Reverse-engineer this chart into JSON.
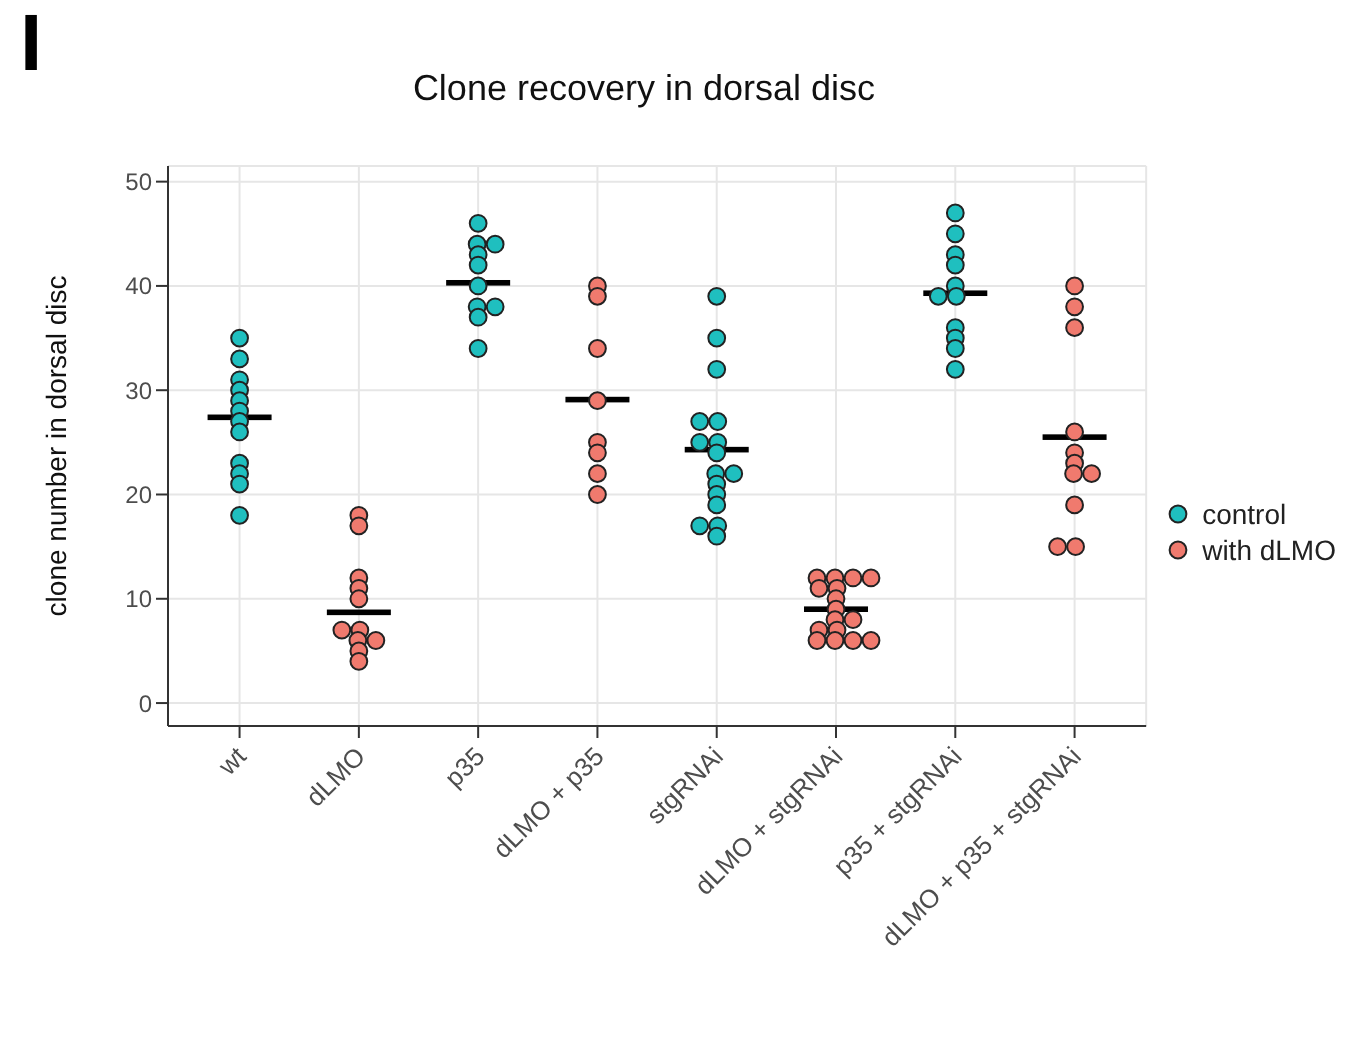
{
  "chart_data": {
    "type": "scatter",
    "title": "Clone recovery in dorsal disc",
    "ylabel": "clone number in dorsal disc",
    "annotations": [
      "I"
    ],
    "categories": [
      "wt",
      "dLMO",
      "p35",
      "dLMO + p35",
      "stgRNAi",
      "dLMO + stgRNAi",
      "p35 + stgRNAi",
      "dLMO + p35 + stgRNAi"
    ],
    "ylim": [
      -2.2,
      51.5
    ],
    "yticks": [
      0,
      10,
      20,
      30,
      40,
      50
    ],
    "grid": true,
    "legend": "right",
    "marker": "circle",
    "series": [
      {
        "name": "control",
        "color": "#1fbfbf",
        "x": [
          "wt",
          "wt",
          "wt",
          "wt",
          "wt",
          "wt",
          "wt",
          "wt",
          "wt",
          "wt",
          "wt",
          "wt",
          "p35",
          "p35",
          "p35",
          "p35",
          "p35",
          "p35",
          "p35",
          "p35",
          "p35",
          "p35",
          "stgRNAi",
          "stgRNAi",
          "stgRNAi",
          "stgRNAi",
          "stgRNAi",
          "stgRNAi",
          "stgRNAi",
          "stgRNAi",
          "stgRNAi",
          "stgRNAi",
          "stgRNAi",
          "stgRNAi",
          "stgRNAi",
          "stgRNAi",
          "stgRNAi",
          "stgRNAi",
          "p35 + stgRNAi",
          "p35 + stgRNAi",
          "p35 + stgRNAi",
          "p35 + stgRNAi",
          "p35 + stgRNAi",
          "p35 + stgRNAi",
          "p35 + stgRNAi",
          "p35 + stgRNAi",
          "p35 + stgRNAi",
          "p35 + stgRNAi",
          "p35 + stgRNAi"
        ],
        "values": [
          35,
          33,
          31,
          30,
          29,
          28,
          27,
          26,
          23,
          22,
          21,
          18,
          46,
          44,
          44,
          43,
          42,
          40,
          38,
          38,
          37,
          34,
          39,
          35,
          32,
          27,
          27,
          25,
          25,
          24,
          22,
          22,
          21,
          20,
          19,
          17,
          17,
          16,
          47,
          45,
          43,
          42,
          40,
          39,
          39,
          36,
          35,
          34,
          32
        ]
      },
      {
        "name": "with dLMO",
        "color": "#f07a6e",
        "x": [
          "dLMO",
          "dLMO",
          "dLMO",
          "dLMO",
          "dLMO",
          "dLMO",
          "dLMO",
          "dLMO",
          "dLMO",
          "dLMO",
          "dLMO",
          "dLMO + p35",
          "dLMO + p35",
          "dLMO + p35",
          "dLMO + p35",
          "dLMO + p35",
          "dLMO + p35",
          "dLMO + p35",
          "dLMO + p35",
          "dLMO + stgRNAi",
          "dLMO + stgRNAi",
          "dLMO + stgRNAi",
          "dLMO + stgRNAi",
          "dLMO + stgRNAi",
          "dLMO + stgRNAi",
          "dLMO + stgRNAi",
          "dLMO + stgRNAi",
          "dLMO + stgRNAi",
          "dLMO + stgRNAi",
          "dLMO + stgRNAi",
          "dLMO + stgRNAi",
          "dLMO + stgRNAi",
          "dLMO + stgRNAi",
          "dLMO + stgRNAi",
          "dLMO + stgRNAi",
          "dLMO + p35 + stgRNAi",
          "dLMO + p35 + stgRNAi",
          "dLMO + p35 + stgRNAi",
          "dLMO + p35 + stgRNAi",
          "dLMO + p35 + stgRNAi",
          "dLMO + p35 + stgRNAi",
          "dLMO + p35 + stgRNAi",
          "dLMO + p35 + stgRNAi",
          "dLMO + p35 + stgRNAi",
          "dLMO + p35 + stgRNAi",
          "dLMO + p35 + stgRNAi"
        ],
        "values": [
          18,
          17,
          12,
          11,
          10,
          7,
          7,
          6,
          6,
          5,
          4,
          40,
          39,
          34,
          29,
          25,
          24,
          22,
          20,
          12,
          12,
          12,
          12,
          11,
          11,
          10,
          9,
          8,
          8,
          7,
          7,
          6,
          6,
          6,
          6,
          40,
          38,
          36,
          26,
          24,
          23,
          22,
          22,
          19,
          15,
          15
        ]
      },
      {
        "type": "box",
        "color": "#000000",
        "boxes": [
          {
            "low": 27.4,
            "q1": 27.4,
            "median": 27.4,
            "q3": 27.4,
            "high": 27.4
          },
          {
            "low": 8.7,
            "q1": 8.7,
            "median": 8.7,
            "q3": 8.7,
            "high": 8.7
          },
          {
            "low": 40.3,
            "q1": 40.3,
            "median": 40.3,
            "q3": 40.3,
            "high": 40.3
          },
          {
            "low": 29.1,
            "q1": 29.1,
            "median": 29.1,
            "q3": 29.1,
            "high": 29.1
          },
          {
            "low": 24.3,
            "q1": 24.3,
            "median": 24.3,
            "q3": 24.3,
            "high": 24.3
          },
          {
            "low": 9.0,
            "q1": 9.0,
            "median": 9.0,
            "q3": 9.0,
            "high": 9.0
          },
          {
            "low": 39.3,
            "q1": 39.3,
            "median": 39.3,
            "q3": 39.3,
            "high": 39.3
          },
          {
            "low": 25.5,
            "q1": 25.5,
            "median": 25.5,
            "q3": 25.5,
            "high": 25.5
          }
        ]
      }
    ]
  }
}
